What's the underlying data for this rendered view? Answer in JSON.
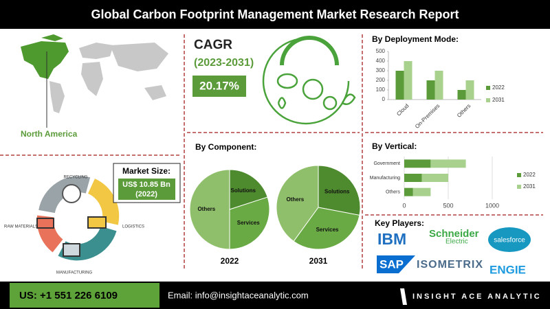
{
  "header": {
    "title": "Global Carbon Footprint Management Market Research Report"
  },
  "region": "North America",
  "cycle": {
    "recycling": "RECYCLING",
    "logistics": "LOGISTICS",
    "manufacturing": "MANUFACTURING",
    "raw": "RAW MATERIALS"
  },
  "market_size": {
    "label": "Market Size:",
    "value": "US$ 10.85 Bn",
    "year": "(2022)"
  },
  "cagr": {
    "label": "CAGR",
    "period": "(2023-2031)",
    "value": "20.17%"
  },
  "component_title": "By Component:",
  "chart_data": [
    {
      "type": "bar",
      "title": "By Deployment Mode:",
      "categories": [
        "Cloud",
        "On-Premises",
        "Others"
      ],
      "series": [
        {
          "name": "2022",
          "color": "#5b9b3a",
          "values": [
            300,
            200,
            100
          ]
        },
        {
          "name": "2031",
          "color": "#a9d18e",
          "values": [
            400,
            300,
            200
          ]
        }
      ],
      "ylim": [
        0,
        500
      ],
      "yticks": [
        0,
        100,
        200,
        300,
        400,
        500
      ],
      "legend": "right"
    },
    {
      "type": "hbar",
      "stacked": true,
      "title": "By Vertical:",
      "categories": [
        "Government",
        "Manufacturing",
        "Others"
      ],
      "series": [
        {
          "name": "2022",
          "color": "#5b9b3a",
          "values": [
            300,
            200,
            100
          ]
        },
        {
          "name": "2031",
          "color": "#a9d18e",
          "values": [
            400,
            300,
            200
          ]
        }
      ],
      "xlim": [
        0,
        1000
      ],
      "xticks": [
        0,
        500,
        1000
      ],
      "grid": true,
      "legend": "right"
    },
    {
      "type": "pie",
      "title": "2022",
      "categories": [
        "Solutions",
        "Services",
        "Others"
      ],
      "values": [
        20,
        30,
        50
      ],
      "colors": [
        "#4e8a2e",
        "#6aaa45",
        "#8fbf6a"
      ]
    },
    {
      "type": "pie",
      "title": "2031",
      "categories": [
        "Solutions",
        "Services",
        "Others"
      ],
      "values": [
        28,
        32,
        40
      ],
      "colors": [
        "#4e8a2e",
        "#6aaa45",
        "#8fbf6a"
      ]
    }
  ],
  "key_players": {
    "title": "Key Players:",
    "ibm": "IBM",
    "schneider": "Schneider",
    "electric": "Electric",
    "salesforce": "salesforce",
    "sap": "SAP",
    "isometrix": "ISOMETRIX",
    "engie": "ENGIE"
  },
  "footer": {
    "phone": "US: +1 551 226 6109",
    "email": "Email: info@insightaceanalytic.com",
    "brand": "INSIGHT ACE ANALYTIC"
  }
}
